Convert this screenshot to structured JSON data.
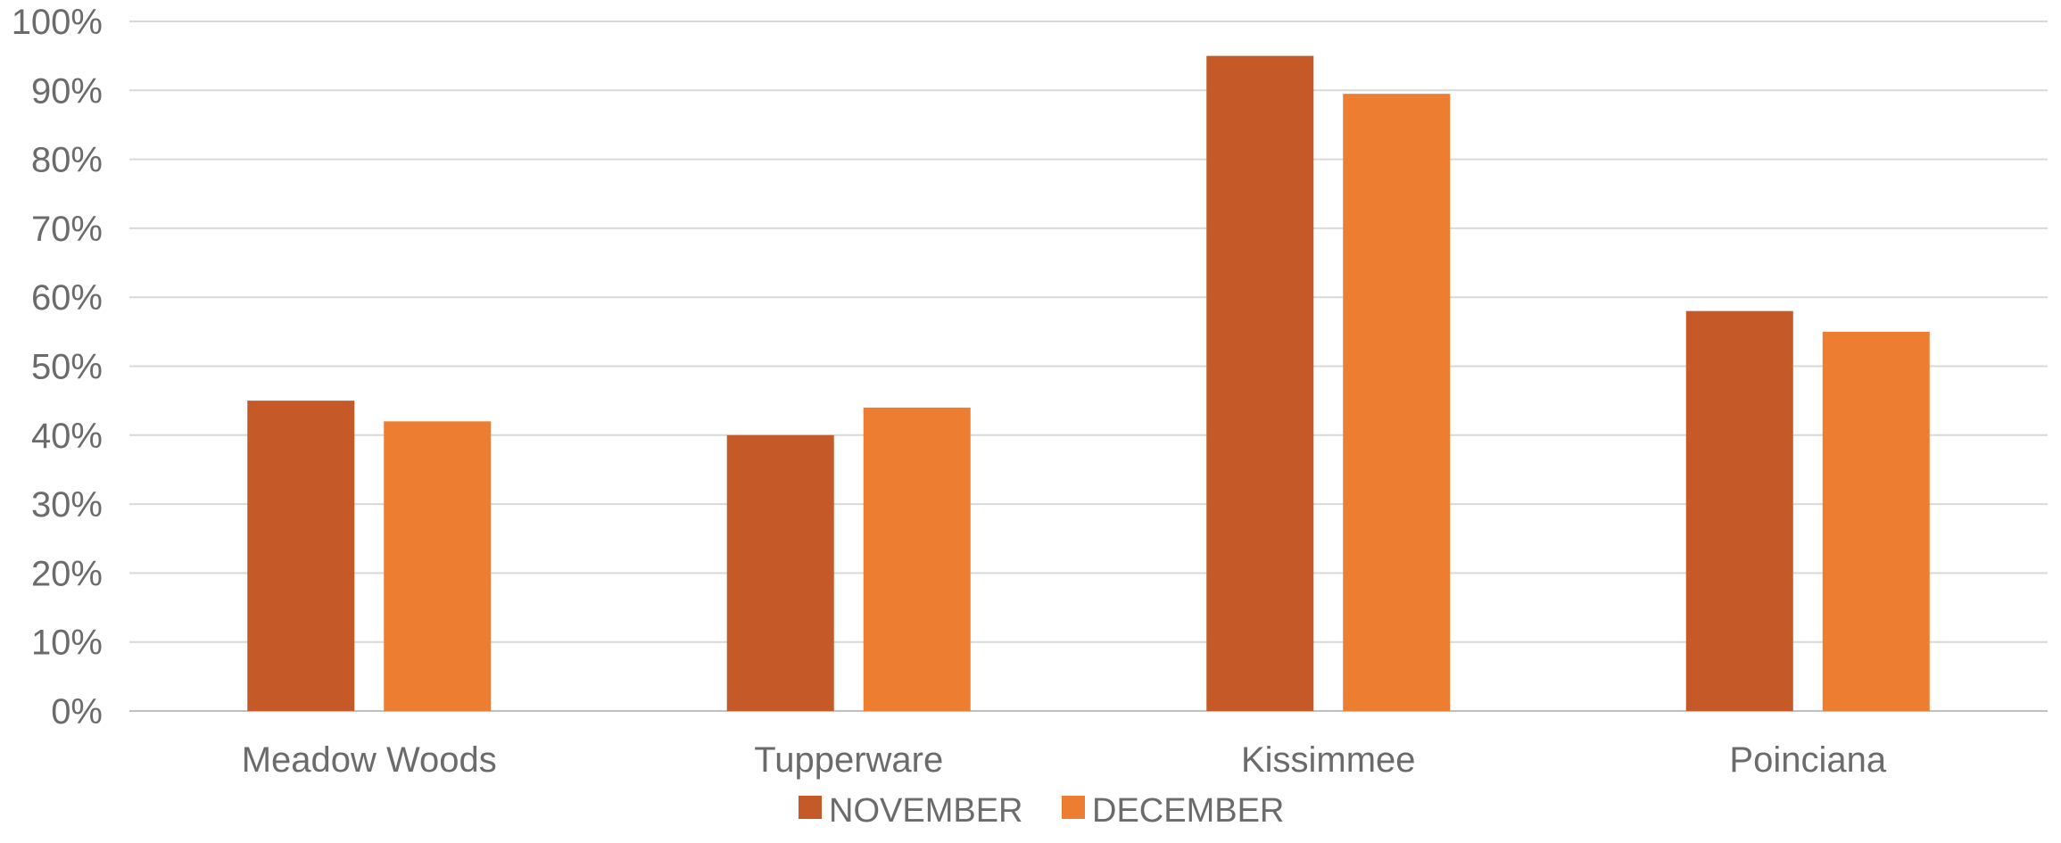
{
  "chart_data": {
    "type": "bar",
    "title": "",
    "xlabel": "",
    "ylabel": "",
    "categories": [
      "Meadow Woods",
      "Tupperware",
      "Kissimmee",
      "Poinciana"
    ],
    "series": [
      {
        "name": "NOVEMBER",
        "color": "#C55A28",
        "values": [
          45,
          40,
          95,
          58
        ]
      },
      {
        "name": "DECEMBER",
        "color": "#ED7D31",
        "values": [
          42,
          44,
          89.5,
          55
        ]
      }
    ],
    "ylim": [
      0,
      100
    ],
    "yticks": [
      0,
      10,
      20,
      30,
      40,
      50,
      60,
      70,
      80,
      90,
      100
    ],
    "ytick_labels": [
      "0%",
      "10%",
      "20%",
      "30%",
      "40%",
      "50%",
      "60%",
      "70%",
      "80%",
      "90%",
      "100%"
    ],
    "grid": true,
    "legend_position": "bottom"
  }
}
